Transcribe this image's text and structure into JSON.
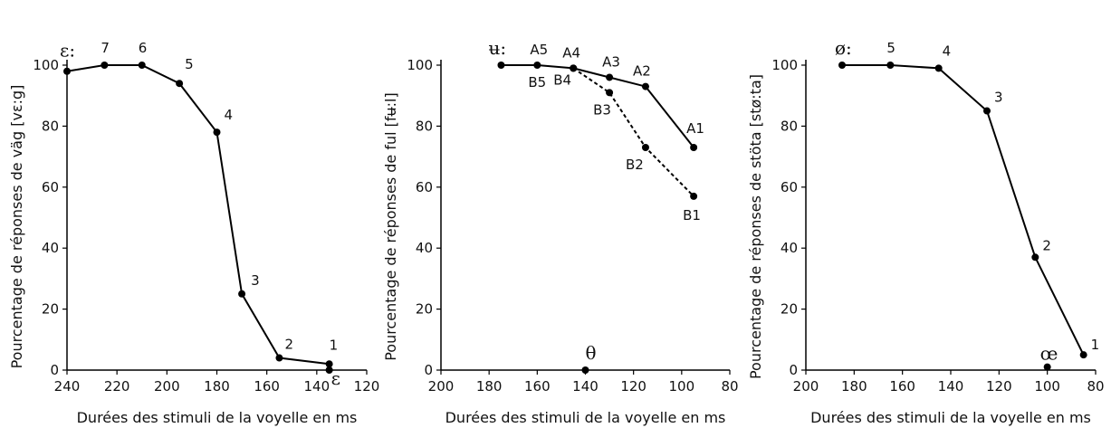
{
  "chart_data": [
    {
      "type": "line",
      "xlabel": "Durées des stimuli de la voyelle en ms",
      "ylabel": "Pourcentage de réponses de väg [vɛ:g]",
      "x_ticks": [
        240,
        220,
        200,
        180,
        160,
        140,
        120
      ],
      "y_ticks": [
        0,
        20,
        40,
        60,
        80,
        100
      ],
      "xlim": [
        240,
        120
      ],
      "ylim": [
        0,
        100
      ],
      "series": [
        {
          "style": "solid",
          "points": [
            {
              "x": 240,
              "y": 98,
              "label": "ɛ:"
            },
            {
              "x": 225,
              "y": 100,
              "label": "7"
            },
            {
              "x": 210,
              "y": 100,
              "label": "6"
            },
            {
              "x": 195,
              "y": 94,
              "label": "5"
            },
            {
              "x": 180,
              "y": 78,
              "label": "4"
            },
            {
              "x": 170,
              "y": 25,
              "label": "3"
            },
            {
              "x": 155,
              "y": 4,
              "label": "2"
            },
            {
              "x": 135,
              "y": 2,
              "label": "1"
            }
          ]
        }
      ],
      "extra_points": [
        {
          "x": 135,
          "y": 0,
          "label": "ɛ"
        }
      ]
    },
    {
      "type": "line",
      "xlabel": "Durées des stimuli de la voyelle en ms",
      "ylabel": "Pourcentage de réponses de ful [fʉ:l]",
      "x_ticks": [
        200,
        180,
        160,
        140,
        120,
        100,
        80
      ],
      "y_ticks": [
        0,
        20,
        40,
        60,
        80,
        100
      ],
      "xlim": [
        200,
        80
      ],
      "ylim": [
        0,
        100
      ],
      "series": [
        {
          "style": "solid",
          "points": [
            {
              "x": 175,
              "y": 100,
              "label": "ʉ:"
            },
            {
              "x": 160,
              "y": 100,
              "label": "A5"
            },
            {
              "x": 145,
              "y": 99,
              "label": "A4"
            },
            {
              "x": 130,
              "y": 96,
              "label": "A3"
            },
            {
              "x": 115,
              "y": 93,
              "label": "A2"
            },
            {
              "x": 95,
              "y": 73,
              "label": "A1"
            }
          ]
        },
        {
          "style": "dashed",
          "points": [
            {
              "x": 145,
              "y": 99,
              "label": "B4"
            },
            {
              "x": 130,
              "y": 91,
              "label": "B3"
            },
            {
              "x": 115,
              "y": 73,
              "label": "B2"
            },
            {
              "x": 95,
              "y": 57,
              "label": "B1"
            }
          ]
        }
      ],
      "extra_labels": [
        {
          "x": 160,
          "y": 100,
          "label": "B5"
        }
      ],
      "extra_points": [
        {
          "x": 140,
          "y": 0,
          "label": "θ"
        }
      ]
    },
    {
      "type": "line",
      "xlabel": "Durées des stimuli de la voyelle en ms",
      "ylabel": "Pourcentage de réponses de stöta [stø:ta]",
      "x_ticks": [
        200,
        180,
        160,
        140,
        120,
        100,
        80
      ],
      "y_ticks": [
        0,
        20,
        40,
        60,
        80,
        100
      ],
      "xlim": [
        200,
        80
      ],
      "ylim": [
        0,
        100
      ],
      "series": [
        {
          "style": "solid",
          "points": [
            {
              "x": 185,
              "y": 100,
              "label": "ø:"
            },
            {
              "x": 165,
              "y": 100,
              "label": "5"
            },
            {
              "x": 145,
              "y": 99,
              "label": "4"
            },
            {
              "x": 125,
              "y": 85,
              "label": "3"
            },
            {
              "x": 105,
              "y": 37,
              "label": "2"
            },
            {
              "x": 85,
              "y": 5,
              "label": "1"
            }
          ]
        }
      ],
      "extra_points": [
        {
          "x": 100,
          "y": 1,
          "label": "œ"
        }
      ]
    }
  ]
}
